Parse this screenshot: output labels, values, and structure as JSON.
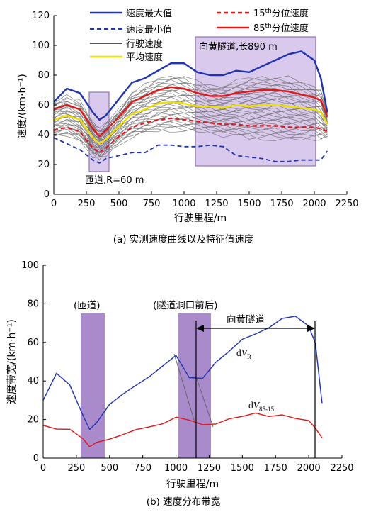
{
  "panel_a": {
    "caption": "(a) 实测速度曲线以及特征值速度",
    "legend": {
      "max": "速度最大值",
      "min": "速度最小值",
      "drive": "行驶速度",
      "avg": "平均速度",
      "p15": "15th分位速度",
      "p85": "85th分位速度"
    },
    "annotations": {
      "tunnel": "向黄隧道,长890 m",
      "ramp": "匝道,R=60 m"
    },
    "colors": {
      "max": "#1f33b5",
      "min": "#1f33b5",
      "drive": "#6e6e6e",
      "avg": "#f0e000",
      "p15": "#e01818",
      "p85": "#e01818",
      "shade": "#d9c9ec",
      "shade_edge": "#7a5fa7"
    }
  },
  "panel_b": {
    "caption": "(b) 速度分布带宽",
    "annotations": {
      "ramp_paren": "(匝道)",
      "portal": "(隧道洞口前后)",
      "tunnel": "向黄隧道",
      "dVR": "dVR",
      "dV85": "dV85-15"
    },
    "colors": {
      "dVR": "#1f33b5",
      "dV85": "#e01818",
      "shade": "#a98bcb"
    }
  },
  "chart_data": [
    {
      "type": "line",
      "xlabel": "行驶里程/m",
      "ylabel": "速度/(km·h⁻¹)",
      "xlim": [
        0,
        2250
      ],
      "ylim": [
        0,
        120
      ],
      "xticks": [
        0,
        250,
        500,
        750,
        1000,
        1250,
        1500,
        1750,
        2000,
        2250
      ],
      "yticks": [
        0,
        20,
        40,
        60,
        80,
        100,
        120
      ],
      "grid": false,
      "legend_position": "top",
      "shaded_regions": [
        {
          "x": [
            260,
            420
          ],
          "label": "匝道,R=60 m"
        },
        {
          "x": [
            1130,
            2080
          ],
          "label": "向黄隧道,长890 m"
        }
      ],
      "x": [
        0,
        100,
        200,
        300,
        350,
        400,
        500,
        600,
        700,
        800,
        900,
        1000,
        1100,
        1200,
        1300,
        1400,
        1500,
        1600,
        1700,
        1800,
        1900,
        2000,
        2050,
        2100
      ],
      "series": [
        {
          "name": "速度最大值",
          "style": "solid",
          "values": [
            62,
            71,
            68,
            55,
            50,
            53,
            64,
            75,
            78,
            83,
            88,
            88,
            82,
            80,
            80,
            83,
            82,
            86,
            90,
            94,
            96,
            90,
            78,
            55
          ]
        },
        {
          "name": "速度最小值",
          "style": "dashed",
          "values": [
            38,
            34,
            30,
            23,
            21,
            24,
            26,
            28,
            28,
            33,
            33,
            32,
            32,
            33,
            32,
            26,
            25,
            24,
            22,
            22,
            23,
            23,
            23,
            29
          ]
        },
        {
          "name": "平均速度",
          "style": "solid",
          "values": [
            50,
            53,
            50,
            38,
            34,
            37,
            46,
            54,
            57,
            61,
            62,
            61,
            59,
            59,
            58,
            60,
            59,
            60,
            60,
            59,
            58,
            57,
            55,
            47
          ]
        },
        {
          "name": "15th分位速度",
          "style": "dashed",
          "values": [
            43,
            45,
            42,
            31,
            28,
            31,
            39,
            45,
            48,
            50,
            51,
            50,
            49,
            48,
            47,
            47,
            46,
            46,
            46,
            45,
            45,
            45,
            44,
            42
          ]
        },
        {
          "name": "85th分位速度",
          "style": "solid",
          "values": [
            57,
            60,
            57,
            44,
            39,
            43,
            52,
            62,
            66,
            70,
            72,
            71,
            68,
            66,
            66,
            68,
            69,
            70,
            70,
            69,
            67,
            65,
            63,
            52
          ]
        }
      ]
    },
    {
      "type": "line",
      "xlabel": "行驶里程/m",
      "ylabel": "速度带宽/(km·h⁻¹)",
      "xlim": [
        0,
        2250
      ],
      "ylim": [
        0,
        100
      ],
      "xticks": [
        0,
        250,
        500,
        750,
        1000,
        1250,
        1500,
        1750,
        2000,
        2250
      ],
      "yticks": [
        0,
        20,
        40,
        60,
        80,
        100
      ],
      "grid": false,
      "shaded_regions": [
        {
          "x": [
            280,
            450
          ],
          "label": "(匝道)"
        },
        {
          "x": [
            1000,
            1250
          ],
          "label": "(隧道洞口前后)"
        }
      ],
      "reference_lines": [
        1130,
        2020
      ],
      "x": [
        0,
        100,
        200,
        300,
        350,
        400,
        500,
        600,
        700,
        800,
        900,
        1000,
        1100,
        1200,
        1300,
        1400,
        1500,
        1600,
        1700,
        1800,
        1900,
        2000,
        2050,
        2100
      ],
      "series": [
        {
          "name": "dVR",
          "values": [
            30,
            44,
            38,
            22,
            15,
            18,
            28,
            33,
            38,
            42,
            48,
            53,
            42,
            41,
            50,
            55,
            62,
            64,
            68,
            72,
            74,
            68,
            60,
            28
          ]
        },
        {
          "name": "dV85-15",
          "values": [
            17,
            15,
            15,
            10,
            6,
            8,
            10,
            12,
            15,
            16,
            18,
            21,
            20,
            17,
            18,
            20,
            22,
            23,
            22,
            22,
            21,
            19,
            16,
            10
          ]
        }
      ]
    }
  ]
}
